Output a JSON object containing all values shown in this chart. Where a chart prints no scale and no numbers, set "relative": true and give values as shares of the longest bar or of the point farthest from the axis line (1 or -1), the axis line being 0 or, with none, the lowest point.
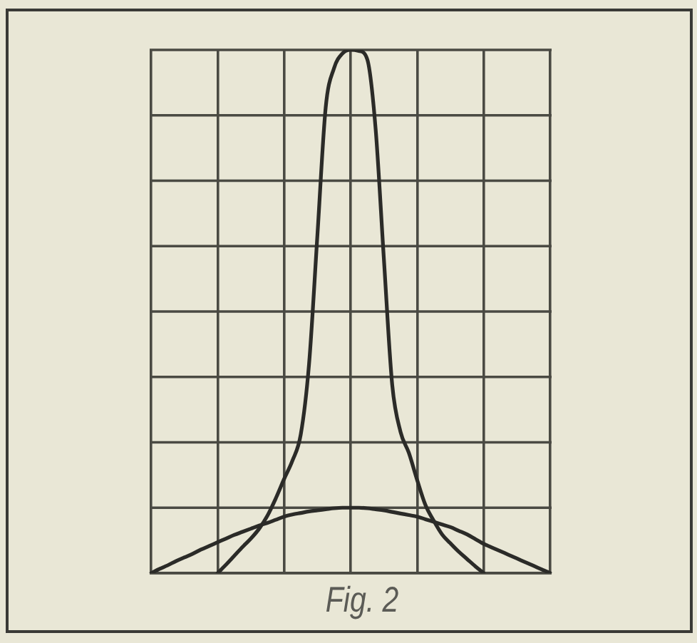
{
  "chart_data": {
    "type": "line",
    "title": "Fig. 2",
    "relative": true,
    "categories": [
      null,
      null,
      null,
      null,
      null,
      null,
      null,
      null,
      null,
      null,
      null,
      null,
      null,
      null,
      null,
      null,
      null,
      null,
      null,
      null,
      null,
      null,
      null,
      null,
      null,
      null,
      null,
      null,
      null,
      null,
      null,
      null,
      null,
      null,
      null,
      null,
      null,
      null,
      null,
      null,
      null,
      null,
      null,
      null,
      null,
      null,
      null,
      null,
      null
    ],
    "series": [
      {
        "color": "#2b2b28",
        "values": [
          null,
          null,
          null,
          null,
          null,
          null,
          null,
          null,
          0,
          0.016,
          0.033,
          0.05,
          0.066,
          0.085,
          0.11,
          0.143,
          0.18,
          0.215,
          0.265,
          0.4,
          0.645,
          0.89,
          0.965,
          0.993,
          1,
          0.998,
          0.982,
          0.85,
          0.6,
          0.36,
          0.27,
          0.23,
          0.178,
          0.13,
          0.1,
          0.074,
          0.057,
          0.041,
          0.027,
          0.013,
          0,
          null,
          null,
          null,
          null,
          null,
          null,
          null,
          null
        ]
      },
      {
        "color": "#2b2b28",
        "values": [
          0,
          0.008,
          0.015,
          0.023,
          0.03,
          0.037,
          0.045,
          0.052,
          0.059,
          0.066,
          0.073,
          0.079,
          0.085,
          0.091,
          0.096,
          0.102,
          0.108,
          0.112,
          0.115,
          0.118,
          0.12,
          0.122,
          0.124,
          0.125,
          0.125,
          0.125,
          0.124,
          0.122,
          0.12,
          0.117,
          0.114,
          0.111,
          0.108,
          0.103,
          0.098,
          0.093,
          0.088,
          0.081,
          0.074,
          0.065,
          0.056,
          0.049,
          0.042,
          0.035,
          0.028,
          0.021,
          0.014,
          0.007,
          0
        ]
      }
    ],
    "grid": true,
    "marker": "none",
    "line_style": "solid"
  }
}
